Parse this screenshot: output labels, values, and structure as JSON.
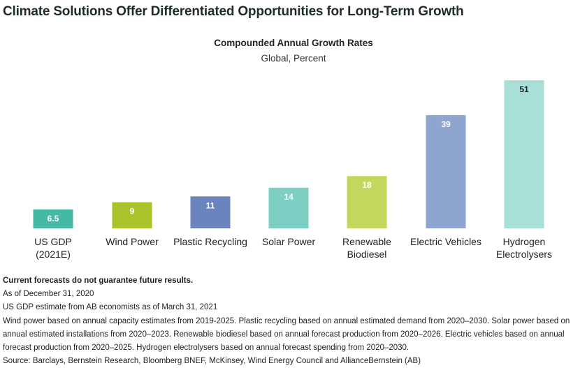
{
  "header": {
    "title": "Climate Solutions Offer Differentiated Opportunities for Long-Term Growth"
  },
  "chart_data": {
    "type": "bar",
    "title": "Compounded Annual Growth Rates",
    "subtitle": "Global, Percent",
    "categories": [
      [
        "US GDP",
        "(2021E)"
      ],
      [
        "Wind Power"
      ],
      [
        "Plastic Recycling"
      ],
      [
        "Solar Power"
      ],
      [
        "Renewable",
        "Biodiesel"
      ],
      [
        "Electric Vehicles"
      ],
      [
        "Hydrogen",
        "Electrolysers"
      ]
    ],
    "values": [
      6.5,
      9,
      11,
      14,
      18,
      39,
      51
    ],
    "value_labels": [
      "6.5",
      "9",
      "11",
      "14",
      "18",
      "39",
      "51"
    ],
    "colors": [
      "#46b9a4",
      "#a9c42a",
      "#6b84bd",
      "#7ecfc3",
      "#c4d75c",
      "#8ea5d0",
      "#a8dfd7"
    ],
    "label_colors": [
      "#ffffff",
      "#ffffff",
      "#ffffff",
      "#ffffff",
      "#ffffff",
      "#ffffff",
      "#1a1a1a"
    ],
    "ylim": [
      0,
      51
    ],
    "xlabel": "",
    "ylabel": "",
    "grid": false
  },
  "footnotes": {
    "disclaimer": "Current forecasts do not guarantee future results.",
    "lines": [
      "As of December 31, 2020",
      "US GDP estimate from AB economists as of March 31, 2021",
      "Wind power based on annual capacity estimates from 2019-2025. Plastic recycling based on annual estimated demand from 2020–2030. Solar power based on annual estimated installations from 2020–2023. Renewable biodiesel based on annual forecast production from 2020–2026. Electric vehicles based on annual forecast production from 2020–2025. Hydrogen electrolysers based on annual forecast spending from 2020–2030.",
      "Source: Barclays, Bernstein Research, Bloomberg BNEF, McKinsey, Wind Energy Council and AllianceBernstein (AB)"
    ]
  }
}
